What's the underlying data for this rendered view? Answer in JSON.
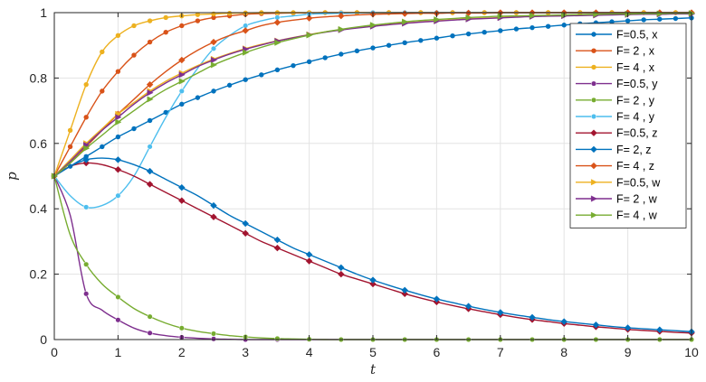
{
  "chart_data": {
    "type": "line",
    "title": "",
    "xlabel": "t",
    "ylabel": "p",
    "xlim": [
      0,
      10
    ],
    "ylim": [
      0,
      1
    ],
    "x_ticks": [
      "0",
      "1",
      "2",
      "3",
      "4",
      "5",
      "6",
      "7",
      "8",
      "9",
      "10"
    ],
    "y_ticks": [
      "0",
      "0.2",
      "0.4",
      "0.6",
      "0.8",
      "1"
    ],
    "grid": true,
    "legend_position": "top-right",
    "x": [
      0,
      0.25,
      0.5,
      0.75,
      1,
      1.25,
      1.5,
      1.75,
      2,
      2.25,
      2.5,
      2.75,
      3,
      3.25,
      3.5,
      3.75,
      4,
      4.25,
      4.5,
      4.75,
      5,
      5.25,
      5.5,
      5.75,
      6,
      6.25,
      6.5,
      6.75,
      7,
      7.25,
      7.5,
      7.75,
      8,
      8.25,
      8.5,
      8.75,
      9,
      9.25,
      9.5,
      9.75,
      10
    ],
    "series": [
      {
        "name": "F=0.5, x",
        "color": "#0072BD",
        "marker": "dot",
        "values": [
          0.5,
          0.53,
          0.56,
          0.59,
          0.62,
          0.645,
          0.67,
          0.695,
          0.72,
          0.74,
          0.76,
          0.778,
          0.795,
          0.81,
          0.825,
          0.838,
          0.85,
          0.862,
          0.873,
          0.883,
          0.892,
          0.9,
          0.908,
          0.915,
          0.922,
          0.929,
          0.935,
          0.94,
          0.945,
          0.95,
          0.954,
          0.958,
          0.962,
          0.966,
          0.969,
          0.972,
          0.975,
          0.978,
          0.98,
          0.982,
          0.984
        ]
      },
      {
        "name": "F= 2 , x",
        "color": "#D95319",
        "marker": "dot",
        "values": [
          0.5,
          0.59,
          0.68,
          0.76,
          0.82,
          0.87,
          0.91,
          0.94,
          0.96,
          0.975,
          0.985,
          0.99,
          0.995,
          0.997,
          0.998,
          0.999,
          0.999,
          1,
          1,
          1,
          1,
          1,
          1,
          1,
          1,
          1,
          1,
          1,
          1,
          1,
          1,
          1,
          1,
          1,
          1,
          1,
          1,
          1,
          1,
          1,
          1
        ]
      },
      {
        "name": "F= 4 , x",
        "color": "#EDB120",
        "marker": "dot",
        "values": [
          0.5,
          0.64,
          0.78,
          0.88,
          0.93,
          0.96,
          0.975,
          0.985,
          0.99,
          0.994,
          0.996,
          0.998,
          0.999,
          1,
          1,
          1,
          1,
          1,
          1,
          1,
          1,
          1,
          1,
          1,
          1,
          1,
          1,
          1,
          1,
          1,
          1,
          1,
          1,
          1,
          1,
          1,
          1,
          1,
          1,
          1,
          1
        ]
      },
      {
        "name": "F=0.5, y",
        "color": "#7E2F8E",
        "marker": "circle",
        "values": [
          0.5,
          0.38,
          0.14,
          0.09,
          0.06,
          0.035,
          0.02,
          0.012,
          0.007,
          0.004,
          0.002,
          0.001,
          0,
          0,
          0,
          0,
          0,
          0,
          0,
          0,
          0,
          0,
          0,
          0,
          0,
          0,
          0,
          0,
          0,
          0,
          0,
          0,
          0,
          0,
          0,
          0,
          0,
          0,
          0,
          0,
          0
        ]
      },
      {
        "name": "F= 2 , y",
        "color": "#77AC30",
        "marker": "circle",
        "values": [
          0.5,
          0.32,
          0.23,
          0.17,
          0.13,
          0.095,
          0.07,
          0.05,
          0.035,
          0.025,
          0.018,
          0.012,
          0.008,
          0.005,
          0.003,
          0.002,
          0.001,
          0,
          0,
          0,
          0,
          0,
          0,
          0,
          0,
          0,
          0,
          0,
          0,
          0,
          0,
          0,
          0,
          0,
          0,
          0,
          0,
          0,
          0,
          0,
          0
        ]
      },
      {
        "name": "F= 4 , y",
        "color": "#4DBEEE",
        "marker": "circle",
        "values": [
          0.5,
          0.44,
          0.405,
          0.41,
          0.44,
          0.5,
          0.59,
          0.68,
          0.76,
          0.83,
          0.89,
          0.93,
          0.96,
          0.975,
          0.985,
          0.99,
          0.995,
          0.997,
          0.998,
          0.999,
          1,
          1,
          1,
          1,
          1,
          1,
          1,
          1,
          1,
          1,
          1,
          1,
          1,
          1,
          1,
          1,
          1,
          1,
          1,
          1,
          1
        ]
      },
      {
        "name": "F=0.5, z",
        "color": "#A2142F",
        "marker": "diamond",
        "values": [
          0.5,
          0.53,
          0.54,
          0.535,
          0.52,
          0.5,
          0.475,
          0.45,
          0.425,
          0.4,
          0.375,
          0.35,
          0.325,
          0.3,
          0.28,
          0.26,
          0.24,
          0.22,
          0.2,
          0.185,
          0.17,
          0.155,
          0.14,
          0.127,
          0.115,
          0.104,
          0.094,
          0.085,
          0.076,
          0.068,
          0.061,
          0.055,
          0.049,
          0.044,
          0.039,
          0.035,
          0.031,
          0.028,
          0.025,
          0.022,
          0.02
        ]
      },
      {
        "name": "F= 2, z",
        "color": "#0072BD",
        "marker": "diamond",
        "values": [
          0.5,
          0.53,
          0.55,
          0.555,
          0.55,
          0.535,
          0.515,
          0.49,
          0.465,
          0.44,
          0.41,
          0.38,
          0.355,
          0.33,
          0.305,
          0.28,
          0.26,
          0.24,
          0.22,
          0.2,
          0.182,
          0.166,
          0.151,
          0.137,
          0.124,
          0.113,
          0.102,
          0.092,
          0.083,
          0.075,
          0.068,
          0.061,
          0.055,
          0.05,
          0.045,
          0.04,
          0.036,
          0.033,
          0.03,
          0.027,
          0.024
        ]
      },
      {
        "name": "F= 4 , z",
        "color": "#D95319",
        "marker": "diamond",
        "values": [
          0.5,
          0.54,
          0.59,
          0.64,
          0.69,
          0.735,
          0.78,
          0.82,
          0.855,
          0.885,
          0.91,
          0.93,
          0.945,
          0.96,
          0.97,
          0.977,
          0.983,
          0.987,
          0.99,
          0.993,
          0.995,
          0.996,
          0.997,
          0.998,
          0.998,
          0.999,
          0.999,
          0.999,
          1,
          1,
          1,
          1,
          1,
          1,
          1,
          1,
          1,
          1,
          1,
          1,
          1
        ]
      },
      {
        "name": "F=0.5, w",
        "color": "#EDB120",
        "marker": "triangle",
        "values": [
          0.5,
          0.55,
          0.6,
          0.645,
          0.69,
          0.725,
          0.76,
          0.79,
          0.815,
          0.838,
          0.858,
          0.875,
          0.89,
          0.903,
          0.914,
          0.924,
          0.933,
          0.941,
          0.948,
          0.954,
          0.959,
          0.964,
          0.968,
          0.972,
          0.975,
          0.978,
          0.981,
          0.983,
          0.985,
          0.987,
          0.989,
          0.99,
          0.991,
          0.992,
          0.993,
          0.994,
          0.995,
          0.996,
          0.996,
          0.997,
          0.997
        ]
      },
      {
        "name": "F= 2 , w",
        "color": "#7E2F8E",
        "marker": "triangle",
        "values": [
          0.5,
          0.545,
          0.595,
          0.64,
          0.68,
          0.72,
          0.755,
          0.785,
          0.81,
          0.835,
          0.855,
          0.873,
          0.888,
          0.901,
          0.913,
          0.923,
          0.932,
          0.94,
          0.947,
          0.953,
          0.958,
          0.963,
          0.967,
          0.971,
          0.974,
          0.977,
          0.98,
          0.982,
          0.984,
          0.986,
          0.988,
          0.989,
          0.99,
          0.991,
          0.992,
          0.993,
          0.994,
          0.995,
          0.995,
          0.996,
          0.996
        ]
      },
      {
        "name": "F= 4 , w",
        "color": "#77AC30",
        "marker": "triangle",
        "values": [
          0.5,
          0.54,
          0.585,
          0.625,
          0.665,
          0.7,
          0.735,
          0.765,
          0.79,
          0.815,
          0.84,
          0.86,
          0.878,
          0.894,
          0.908,
          0.92,
          0.931,
          0.941,
          0.949,
          0.956,
          0.962,
          0.967,
          0.972,
          0.976,
          0.979,
          0.982,
          0.985,
          0.987,
          0.989,
          0.99,
          0.991,
          0.992,
          0.993,
          0.994,
          0.995,
          0.996,
          0.996,
          0.997,
          0.997,
          0.998,
          0.998
        ]
      }
    ]
  }
}
